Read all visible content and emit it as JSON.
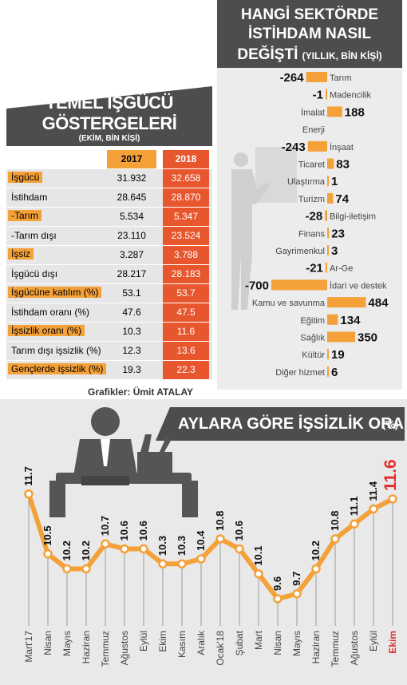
{
  "left_panel": {
    "title_line1": "TEMEL İŞGÜCÜ",
    "title_line2": "GÖSTERGELERİ",
    "subtitle": "(EKİM, BİN KİŞİ)",
    "header_2017": "2017",
    "header_2018": "2018",
    "rows": [
      {
        "label": "İşgücü",
        "v2017": "31.932",
        "v2018": "32.658",
        "highlight": true
      },
      {
        "label": "İstihdam",
        "v2017": "28.645",
        "v2018": "28.870",
        "highlight": false
      },
      {
        "label": "-Tarım",
        "v2017": "5.534",
        "v2018": "5.347",
        "highlight": true
      },
      {
        "label": "-Tarım dışı",
        "v2017": "23.110",
        "v2018": "23.524",
        "highlight": false
      },
      {
        "label": "İşsiz",
        "v2017": "3.287",
        "v2018": "3.788",
        "highlight": true
      },
      {
        "label": "İşgücü dışı",
        "v2017": "28.217",
        "v2018": "28.183",
        "highlight": false
      },
      {
        "label": "İşgücüne katılım (%)",
        "v2017": "53.1",
        "v2018": "53.7",
        "highlight": true
      },
      {
        "label": "İstihdam oranı (%)",
        "v2017": "47.6",
        "v2018": "47.5",
        "highlight": false
      },
      {
        "label": "İşsizlik oranı (%)",
        "v2017": "10.3",
        "v2018": "11.6",
        "highlight": true
      },
      {
        "label": "Tarım dışı işsizlik (%)",
        "v2017": "12.3",
        "v2018": "13.6",
        "highlight": false
      },
      {
        "label": "Gençlerde işsizlik (%)",
        "v2017": "19.3",
        "v2018": "22.3",
        "highlight": true
      }
    ],
    "credit": "Grafikler: Ümit ATALAY"
  },
  "right_panel": {
    "title_line1": "HANGİ SEKTÖRDE",
    "title_line2": "İSTİHDAM NASIL",
    "title_line3": "DEĞİŞTİ",
    "subtitle": "(YILLIK, BİN KİŞİ)"
  },
  "bottom_panel": {
    "title": "AYLARA GÖRE İŞSİZLİK ORANI",
    "title_unit": "(%)"
  },
  "chart_data": [
    {
      "type": "bar",
      "orientation": "horizontal",
      "title": "HANGİ SEKTÖRDE İSTİHDAM NASIL DEĞİŞTİ",
      "subtitle": "(YILLIK, BİN KİŞİ)",
      "categories": [
        "Tarım",
        "Madencilik",
        "İmalat",
        "Enerji",
        "İnşaat",
        "Ticaret",
        "Ulaştırma",
        "Turizm",
        "Bilgi-iletişim",
        "Finans",
        "Gayrimenkul",
        "Ar-Ge",
        "İdari ve destek",
        "Kamu ve savunma",
        "Eğitim",
        "Sağlık",
        "Kültür",
        "Diğer hizmet"
      ],
      "values": [
        -264,
        -1,
        188,
        0,
        -243,
        83,
        1,
        74,
        -28,
        23,
        3,
        -21,
        -700,
        484,
        134,
        350,
        19,
        6
      ],
      "value_labels": [
        "-264",
        "-1",
        "188",
        "",
        "-243",
        "83",
        "1",
        "74",
        "-28",
        "23",
        "3",
        "-21",
        "-700",
        "484",
        "134",
        "350",
        "19",
        "6"
      ],
      "colors": {
        "bar": "#f4a13a",
        "title_bg": "#4d4d4f"
      }
    },
    {
      "type": "line",
      "title": "AYLARA GÖRE İŞSİZLİK ORANI (%)",
      "categories": [
        "Mart'17",
        "Nisan",
        "Mayıs",
        "Haziran",
        "Temmuz",
        "Ağustos",
        "Eylül",
        "Ekim",
        "Kasım",
        "Aralık",
        "Ocak'18",
        "Şubat",
        "Mart",
        "Nisan",
        "Mayıs",
        "Haziran",
        "Temmuz",
        "Ağustos",
        "Eylül",
        "Ekim"
      ],
      "values": [
        11.7,
        10.5,
        10.2,
        10.2,
        10.7,
        10.6,
        10.6,
        10.3,
        10.3,
        10.4,
        10.8,
        10.6,
        10.1,
        9.6,
        9.7,
        10.2,
        10.8,
        11.1,
        11.4,
        11.6
      ],
      "value_labels": [
        "11.7",
        "10.5",
        "10.2",
        "10.2",
        "10.7",
        "10.6",
        "10.6",
        "10.3",
        "10.3",
        "10.4",
        "10.8",
        "10.6",
        "10.1",
        "9.6",
        "9.7",
        "10.2",
        "10.8",
        "11.1",
        "11.4",
        "11.6"
      ],
      "ylim": [
        9.2,
        12.0
      ],
      "grid": "vertical",
      "colors": {
        "line": "#f4a13a",
        "marker": "#ffffff",
        "highlight": "#e32d2d"
      }
    }
  ]
}
